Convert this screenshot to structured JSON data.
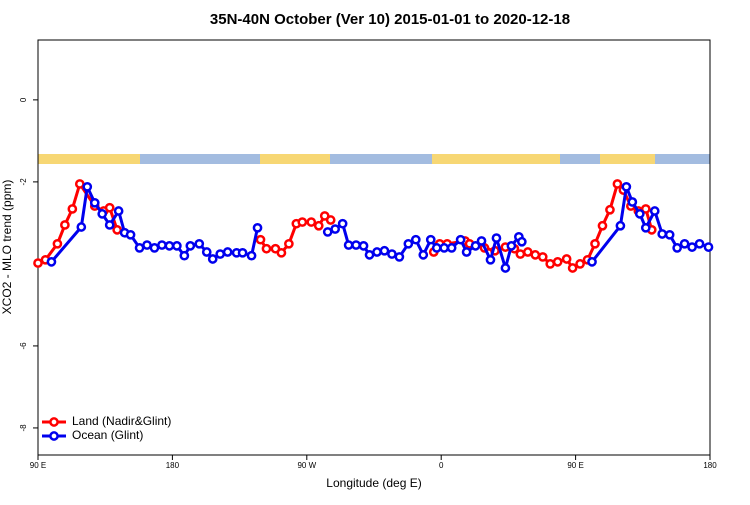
{
  "chart_data": {
    "type": "line",
    "title": "35N-40N October (Ver 10)   2015-01-01 to 2020-12-18",
    "xlabel": "Longitude (deg E)",
    "ylabel": "XCO2 - MLO trend (ppm)",
    "xlim": [
      90,
      540
    ],
    "ylim": [
      -8.66,
      1.46
    ],
    "xticks": [
      {
        "value": 90,
        "label": "90 E"
      },
      180,
      {
        "value": 270,
        "label": "90 W"
      },
      {
        "value": 360,
        "label": "0"
      },
      {
        "value": 450,
        "label": "90 E"
      },
      {
        "value": 540,
        "label": "180"
      }
    ],
    "yticks": [
      0,
      -2,
      -6,
      -8
    ],
    "legend": "bottom-left",
    "series": [
      {
        "name": "Land (Nadir&Glint)",
        "color": "#ff0000",
        "x": [
          90,
          95,
          103,
          108,
          113,
          118,
          128,
          134,
          138,
          143,
          null,
          239,
          243,
          249,
          253,
          258,
          263,
          267,
          273,
          278,
          282,
          286,
          null,
          355,
          359,
          364,
          376,
          379,
          389,
          396,
          403,
          409,
          413,
          418,
          423,
          428,
          433,
          438,
          444,
          448,
          453,
          458,
          463,
          468,
          473,
          478,
          482,
          487,
          492,
          497,
          501
        ],
        "values": [
          -3.98,
          -3.9,
          -3.51,
          -3.05,
          -2.66,
          -2.05,
          -2.59,
          -2.71,
          -2.63,
          -3.17,
          null,
          -3.41,
          -3.63,
          -3.63,
          -3.73,
          -3.51,
          -3.02,
          -2.98,
          -2.98,
          -3.07,
          -2.83,
          -2.93,
          null,
          -3.71,
          -3.51,
          -3.51,
          -3.44,
          -3.51,
          -3.61,
          -3.68,
          -3.59,
          -3.63,
          -3.76,
          -3.71,
          -3.78,
          -3.83,
          -4.0,
          -3.95,
          -3.88,
          -4.1,
          -4.0,
          -3.9,
          -3.51,
          -3.07,
          -2.68,
          -2.05,
          -2.2,
          -2.59,
          -2.71,
          -2.66,
          -3.17
        ]
      },
      {
        "name": "Ocean (Glint)",
        "color": "#0000ee",
        "x": [
          99,
          119,
          123,
          128,
          133,
          138,
          144,
          148,
          152,
          158,
          163,
          168,
          173,
          178,
          183,
          188,
          192,
          198,
          203,
          207,
          212,
          217,
          223,
          227,
          233,
          237,
          null,
          284,
          289,
          294,
          298,
          303,
          308,
          312,
          317,
          322,
          327,
          332,
          338,
          343,
          348,
          353,
          357,
          362,
          367,
          373,
          377,
          383,
          387,
          393,
          397,
          403,
          407,
          412,
          414,
          null,
          461,
          480,
          484,
          488,
          493,
          497,
          503,
          508,
          513,
          518,
          523,
          528,
          533,
          539
        ],
        "values": [
          -3.95,
          -3.1,
          -2.12,
          -2.51,
          -2.78,
          -3.05,
          -2.71,
          -3.24,
          -3.29,
          -3.61,
          -3.54,
          -3.61,
          -3.54,
          -3.56,
          -3.56,
          -3.8,
          -3.56,
          -3.51,
          -3.71,
          -3.88,
          -3.76,
          -3.71,
          -3.73,
          -3.73,
          -3.8,
          -3.12,
          null,
          -3.22,
          -3.15,
          -3.02,
          -3.54,
          -3.54,
          -3.56,
          -3.78,
          -3.71,
          -3.68,
          -3.76,
          -3.83,
          -3.51,
          -3.41,
          -3.78,
          -3.41,
          -3.61,
          -3.61,
          -3.61,
          -3.41,
          -3.71,
          -3.56,
          -3.44,
          -3.9,
          -3.37,
          -4.1,
          -3.56,
          -3.34,
          -3.46,
          null,
          -3.95,
          -3.07,
          -2.12,
          -2.49,
          -2.78,
          -3.12,
          -2.71,
          -3.27,
          -3.29,
          -3.61,
          -3.51,
          -3.59,
          -3.51,
          -3.59
        ]
      }
    ]
  }
}
